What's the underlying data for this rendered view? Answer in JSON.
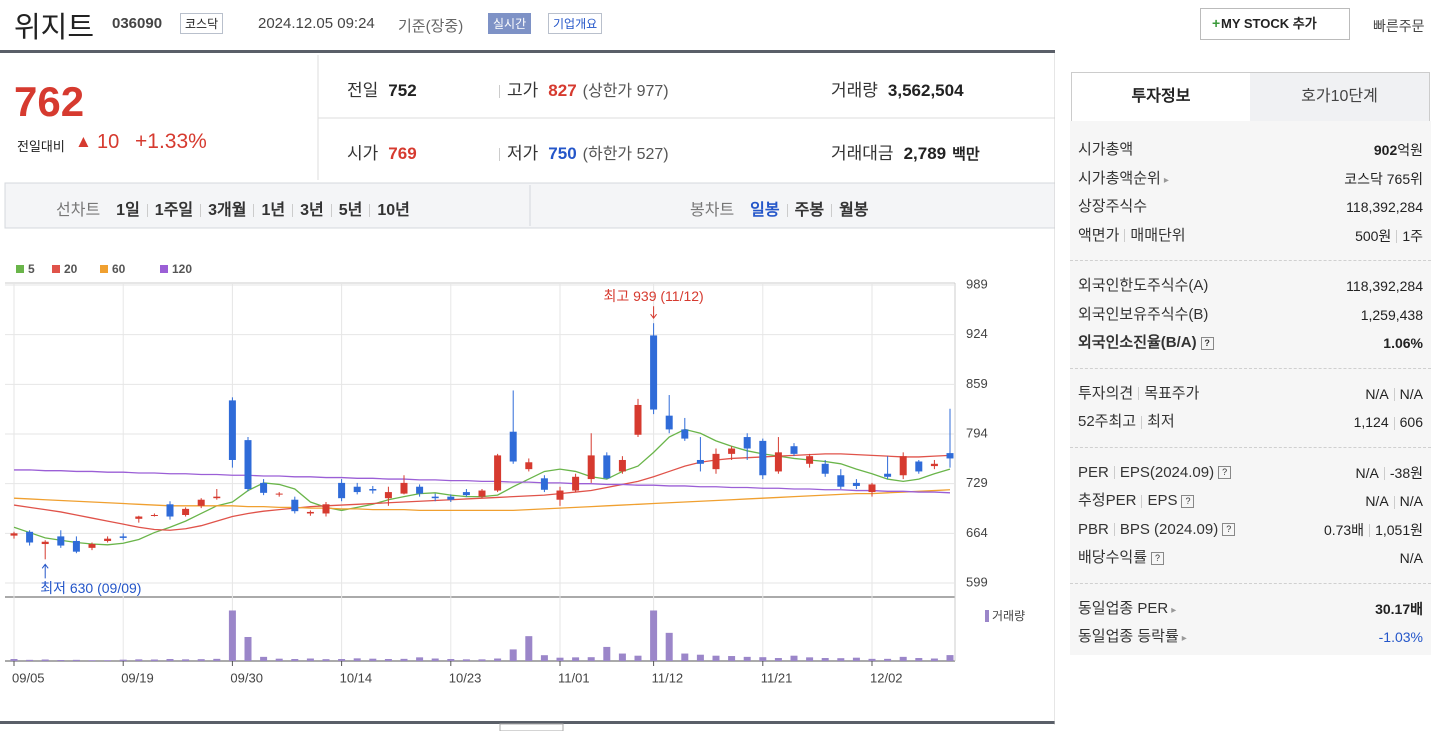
{
  "header": {
    "name": "위지트",
    "code": "036090",
    "market": "코스닥",
    "datetime": "2024.12.05 09:24",
    "basis": "기준(장중)",
    "realtime": "실시간",
    "overview": "기업개요",
    "mystock": "MY STOCK 추가",
    "quick": "빠른주문"
  },
  "quote": {
    "price": "762",
    "change_label": "전일대비",
    "change": "10",
    "rate": "+1.33%",
    "fields": [
      {
        "label": "전일",
        "value": "752"
      },
      {
        "label": "고가",
        "value": "827",
        "extra": "(상한가 977)",
        "color": "#d63a2f"
      },
      {
        "label": "거래량",
        "value": "3,562,504"
      },
      {
        "label": "시가",
        "value": "769",
        "color": "#d63a2f"
      },
      {
        "label": "저가",
        "value": "750",
        "extra": "(하한가 527)",
        "color": "#2456c9"
      },
      {
        "label": "거래대금",
        "value": "2,789",
        "extra": "백만"
      }
    ]
  },
  "periods": {
    "line_label": "선차트",
    "line": [
      "1일",
      "1주일",
      "3개월",
      "1년",
      "3년",
      "5년",
      "10년"
    ],
    "candle_label": "봉차트",
    "candle": [
      "일봉",
      "주봉",
      "월봉"
    ],
    "selected": 0
  },
  "chart_data": {
    "type": "candlestick",
    "up_color": "#d63a2f",
    "down_color": "#2f6bd8",
    "categories": [
      "09/05",
      null,
      null,
      null,
      null,
      null,
      null,
      "09/19",
      null,
      null,
      null,
      null,
      null,
      null,
      "09/30",
      null,
      null,
      null,
      null,
      null,
      null,
      "10/14",
      null,
      null,
      null,
      null,
      null,
      null,
      "10/23",
      null,
      null,
      null,
      null,
      null,
      null,
      "11/01",
      null,
      null,
      null,
      null,
      null,
      "11/12",
      null,
      null,
      null,
      null,
      null,
      null,
      "11/21",
      null,
      null,
      null,
      null,
      null,
      null,
      "12/02",
      null,
      null,
      null,
      null,
      null
    ],
    "open": [
      661,
      666,
      650,
      660,
      654,
      645,
      654,
      660,
      683,
      688,
      702,
      688,
      700,
      710,
      838,
      786,
      730,
      715,
      708,
      690,
      690,
      730,
      725,
      722,
      710,
      716,
      725,
      712,
      712,
      718,
      712,
      720,
      797,
      748,
      736,
      708,
      720,
      735,
      766,
      745,
      793,
      923,
      818,
      800,
      760,
      748,
      768,
      790,
      785,
      745,
      778,
      755,
      755,
      740,
      730,
      718,
      742,
      740,
      758,
      752,
      769
    ],
    "high": [
      666,
      668,
      655,
      668,
      660,
      652,
      660,
      664,
      687,
      690,
      706,
      698,
      710,
      722,
      842,
      790,
      735,
      718,
      712,
      694,
      705,
      735,
      730,
      726,
      725,
      740,
      728,
      716,
      715,
      722,
      722,
      768,
      851,
      762,
      740,
      725,
      742,
      795,
      770,
      765,
      840,
      939,
      845,
      815,
      790,
      775,
      778,
      795,
      788,
      790,
      782,
      768,
      760,
      748,
      735,
      730,
      765,
      770,
      760,
      760,
      827
    ],
    "low": [
      657,
      648,
      630,
      645,
      638,
      642,
      652,
      655,
      678,
      686,
      682,
      686,
      697,
      708,
      750,
      719,
      714,
      712,
      690,
      687,
      686,
      706,
      715,
      716,
      700,
      715,
      712,
      706,
      705,
      712,
      710,
      718,
      755,
      745,
      718,
      700,
      718,
      730,
      735,
      742,
      790,
      820,
      795,
      785,
      745,
      742,
      760,
      760,
      735,
      742,
      765,
      750,
      738,
      722,
      722,
      712,
      735,
      735,
      742,
      748,
      750
    ],
    "close": [
      664,
      652,
      653,
      648,
      640,
      650,
      657,
      658,
      686,
      688,
      686,
      696,
      708,
      712,
      760,
      722,
      717,
      716,
      693,
      692,
      702,
      710,
      718,
      720,
      718,
      730,
      716,
      710,
      708,
      714,
      720,
      766,
      758,
      757,
      721,
      720,
      738,
      766,
      736,
      760,
      832,
      826,
      800,
      788,
      755,
      768,
      775,
      775,
      740,
      770,
      768,
      765,
      742,
      725,
      726,
      728,
      738,
      765,
      745,
      755,
      762
    ],
    "series": [
      {
        "name": "5",
        "color": "#6ab54a",
        "values": [
          672,
          665,
          658,
          655,
          652,
          650,
          649,
          651,
          656,
          665,
          672,
          680,
          690,
          700,
          705,
          720,
          730,
          728,
          722,
          705,
          698,
          694,
          698,
          702,
          708,
          712,
          716,
          717,
          714,
          712,
          712,
          714,
          725,
          735,
          745,
          748,
          745,
          738,
          735,
          745,
          752,
          770,
          790,
          800,
          795,
          785,
          778,
          772,
          768,
          765,
          762,
          760,
          758,
          755,
          748,
          742,
          735,
          732,
          735,
          742,
          748
        ]
      },
      {
        "name": "20",
        "color": "#e0534a",
        "values": [
          701,
          698,
          695,
          692,
          688,
          684,
          680,
          676,
          672,
          669,
          668,
          670,
          674,
          680,
          686,
          690,
          693,
          695,
          697,
          699,
          700,
          701,
          702,
          703,
          704,
          705,
          706,
          707,
          708,
          709,
          710,
          711,
          712,
          713,
          714,
          716,
          718,
          720,
          724,
          728,
          732,
          738,
          745,
          752,
          757,
          760,
          762,
          763,
          764,
          765,
          766,
          767,
          768,
          768,
          767,
          766,
          765,
          764,
          764,
          765,
          766
        ]
      },
      {
        "name": "60",
        "color": "#f0a030",
        "values": [
          710,
          709,
          708,
          707,
          706,
          705,
          704,
          703,
          702,
          701,
          700,
          700,
          700,
          700,
          700,
          699,
          699,
          698,
          698,
          697,
          697,
          696,
          696,
          695,
          695,
          695,
          694,
          694,
          694,
          694,
          694,
          694,
          694,
          695,
          696,
          697,
          698,
          699,
          700,
          701,
          702,
          703,
          704,
          705,
          706,
          707,
          708,
          709,
          710,
          711,
          712,
          713,
          714,
          715,
          716,
          716,
          717,
          718,
          719,
          720,
          721
        ]
      },
      {
        "name": "120",
        "color": "#9b5fd6",
        "values": [
          747,
          747,
          746,
          746,
          745,
          745,
          744,
          744,
          743,
          743,
          742,
          742,
          741,
          741,
          740,
          740,
          739,
          739,
          738,
          738,
          737,
          737,
          736,
          736,
          735,
          735,
          734,
          734,
          733,
          733,
          732,
          732,
          731,
          731,
          730,
          730,
          729,
          729,
          728,
          728,
          727,
          727,
          726,
          726,
          725,
          725,
          724,
          724,
          723,
          723,
          722,
          722,
          721,
          721,
          720,
          720,
          719,
          719,
          718,
          718,
          717
        ]
      }
    ],
    "ylim": [
      599,
      989
    ],
    "yticks": [
      599,
      664,
      729,
      794,
      859,
      924,
      989
    ],
    "annotations": [
      "최고 939 (11/12)",
      "최저 630 (09/09)"
    ],
    "volume_label": "거래량",
    "volume_color": "#9b86c9",
    "volume_ylim": [
      0,
      32000000
    ],
    "volume": [
      1200000,
      700000,
      900000,
      600000,
      700000,
      500000,
      500000,
      800000,
      1000000,
      900000,
      1200000,
      1000000,
      1100000,
      1300000,
      30500000,
      14500000,
      2500000,
      1400000,
      1200000,
      1500000,
      1100000,
      1200000,
      1600000,
      1400000,
      1200000,
      1300000,
      2200000,
      1500000,
      1200000,
      1000000,
      1000000,
      1500000,
      7000000,
      15000000,
      3500000,
      2000000,
      2200000,
      2300000,
      8500000,
      4500000,
      3200000,
      30500000,
      17000000,
      4500000,
      3800000,
      3200000,
      3000000,
      2500000,
      2300000,
      1800000,
      3200000,
      2200000,
      1800000,
      1700000,
      2000000,
      1300000,
      1300000,
      2500000,
      1800000,
      1500000,
      3562504
    ]
  },
  "invest": {
    "tabs": [
      "투자정보",
      "호가10단계"
    ],
    "groups": [
      [
        {
          "label": [
            "시가총액"
          ],
          "value": [
            "902",
            "억원"
          ],
          "strong": true
        },
        {
          "label": [
            "시가총액순위"
          ],
          "link": true,
          "value": [
            "코스닥 765위"
          ]
        },
        {
          "label": [
            "상장주식수"
          ],
          "value": [
            "118,392,284"
          ]
        },
        {
          "label": [
            "액면가",
            "매매단위"
          ],
          "value": [
            "500원",
            "1주"
          ]
        }
      ],
      [
        {
          "label": [
            "외국인한도주식수(A)"
          ],
          "value": [
            "118,392,284"
          ]
        },
        {
          "label": [
            "외국인보유주식수(B)"
          ],
          "value": [
            "1,259,438"
          ]
        },
        {
          "label": [
            "외국인소진율(B/A)"
          ],
          "help": true,
          "value": [
            "1.06%"
          ],
          "strong": true
        }
      ],
      [
        {
          "label": [
            "투자의견",
            "목표주가"
          ],
          "value": [
            "N/A",
            "N/A"
          ]
        },
        {
          "label": [
            "52주최고",
            "최저"
          ],
          "value": [
            "1,124",
            "606"
          ]
        }
      ],
      [
        {
          "label": [
            "PER",
            "EPS(2024.09)"
          ],
          "help": true,
          "value": [
            "N/A",
            "-38원"
          ]
        },
        {
          "label": [
            "추정PER",
            "EPS"
          ],
          "help": true,
          "value": [
            "N/A",
            "N/A"
          ]
        },
        {
          "label": [
            "PBR",
            "BPS (2024.09)"
          ],
          "help": true,
          "value": [
            "0.73배",
            "1,051원"
          ]
        },
        {
          "label": [
            "배당수익률"
          ],
          "help": true,
          "value": [
            "N/A"
          ]
        }
      ],
      [
        {
          "label": [
            "동일업종 PER"
          ],
          "link": true,
          "value": [
            "30.17배"
          ],
          "strong": true
        },
        {
          "label": [
            "동일업종 등락률"
          ],
          "link": true,
          "value": [
            "-1.03%"
          ],
          "color": "#2456c9"
        }
      ]
    ]
  }
}
